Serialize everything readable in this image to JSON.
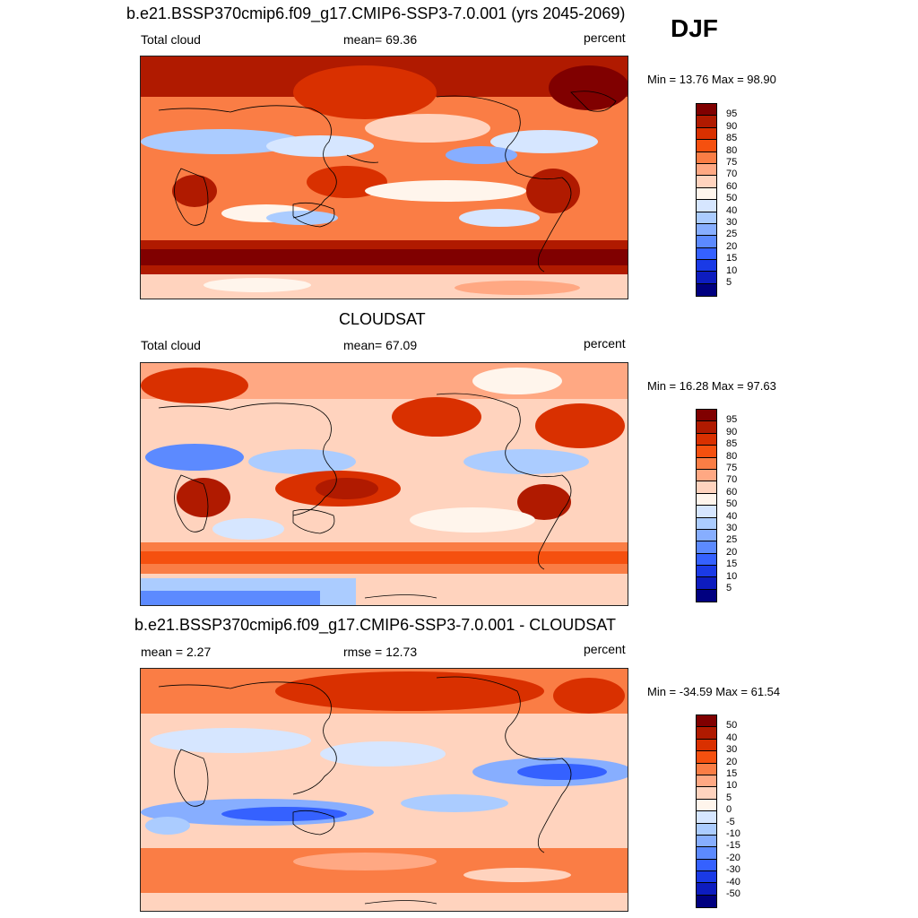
{
  "season": "DJF",
  "palette_abs": [
    "#800000",
    "#b01a00",
    "#d93000",
    "#f5500f",
    "#fa7d45",
    "#ffa883",
    "#ffd3be",
    "#fff5ec",
    "#d6e6ff",
    "#abccff",
    "#87aeff",
    "#5c8aff",
    "#3561ff",
    "#1a3ae6",
    "#0d1cbf",
    "#000080"
  ],
  "palette_diff": [
    "#800000",
    "#b01a00",
    "#d93000",
    "#f5500f",
    "#fa7d45",
    "#ffa883",
    "#ffd3be",
    "#fff5ec",
    "#d6e6ff",
    "#abccff",
    "#87aeff",
    "#5c8aff",
    "#3561ff",
    "#1a3ae6",
    "#0d1cbf",
    "#000080"
  ],
  "panels": [
    {
      "title": "b.e21.BSSP370cmip6.f09_g17.CMIP6-SSP3-7.0.001 (yrs 2045-2069)",
      "left_label": "Total cloud",
      "center_label": "mean=  69.36",
      "units": "percent",
      "minmax": "Min =  13.76 Max =  98.90",
      "levels": [
        "95",
        "90",
        "85",
        "80",
        "75",
        "70",
        "60",
        "50",
        "40",
        "30",
        "25",
        "20",
        "15",
        "10",
        "5"
      ]
    },
    {
      "title": "CLOUDSAT",
      "left_label": "Total cloud",
      "center_label": "mean=  67.09",
      "units": "percent",
      "minmax": "Min =  16.28 Max =  97.63",
      "levels": [
        "95",
        "90",
        "85",
        "80",
        "75",
        "70",
        "60",
        "50",
        "40",
        "30",
        "25",
        "20",
        "15",
        "10",
        "5"
      ]
    },
    {
      "title": "b.e21.BSSP370cmip6.f09_g17.CMIP6-SSP3-7.0.001 - CLOUDSAT",
      "left_label": "mean =   2.27",
      "center_label": "rmse =  12.73",
      "units": "percent",
      "minmax": "Min = -34.59 Max =  61.54",
      "levels": [
        "50",
        "40",
        "30",
        "20",
        "15",
        "10",
        "5",
        "0",
        "-5",
        "-10",
        "-15",
        "-20",
        "-30",
        "-40",
        "-50"
      ]
    }
  ]
}
